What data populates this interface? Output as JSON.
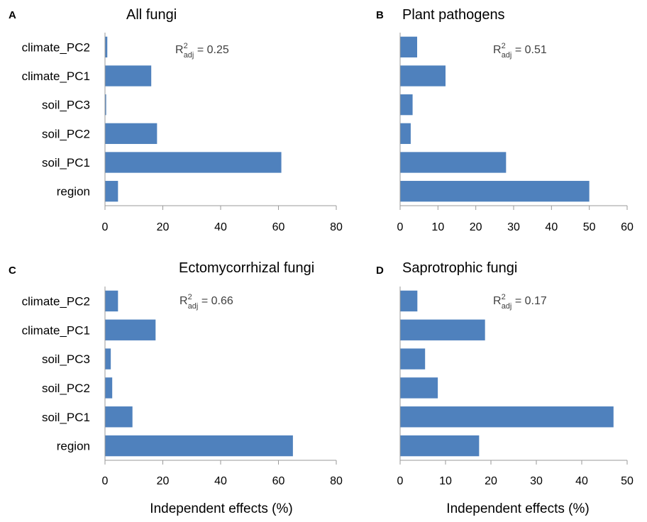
{
  "chart_data": [
    {
      "type": "bar",
      "orientation": "horizontal",
      "panel_letter": "A",
      "title": "All fungi",
      "r2_base": "R",
      "r2_sup": "2",
      "r2_sub": "adj",
      "r2_value": " = 0.25",
      "categories": [
        "climate_PC2",
        "climate_PC1",
        "soil_PC3",
        "soil_PC2",
        "soil_PC1",
        "region"
      ],
      "values": [
        0.8,
        16,
        0.4,
        18,
        61,
        4.5
      ],
      "xlim": [
        0,
        80
      ],
      "ticks": [
        0,
        20,
        40,
        60,
        80
      ],
      "xlabel": ""
    },
    {
      "type": "bar",
      "orientation": "horizontal",
      "panel_letter": "B",
      "title": "Plant pathogens",
      "r2_base": "R",
      "r2_sup": "2",
      "r2_sub": "adj",
      "r2_value": " = 0.51",
      "categories": [
        "climate_PC2",
        "climate_PC1",
        "soil_PC3",
        "soil_PC2",
        "soil_PC1",
        "region"
      ],
      "values": [
        4.5,
        12,
        3.3,
        2.8,
        28,
        50
      ],
      "xlim": [
        0,
        60
      ],
      "ticks": [
        0,
        10,
        20,
        30,
        40,
        50,
        60
      ],
      "xlabel": ""
    },
    {
      "type": "bar",
      "orientation": "horizontal",
      "panel_letter": "C",
      "title": "Ectomycorrhizal fungi",
      "r2_base": "R",
      "r2_sup": "2",
      "r2_sub": "adj",
      "r2_value": " = 0.66",
      "categories": [
        "climate_PC2",
        "climate_PC1",
        "soil_PC3",
        "soil_PC2",
        "soil_PC1",
        "region"
      ],
      "values": [
        4.5,
        17.5,
        2,
        2.5,
        9.5,
        65
      ],
      "xlim": [
        0,
        80
      ],
      "ticks": [
        0,
        20,
        40,
        60,
        80
      ],
      "xlabel": "Independent effects (%)"
    },
    {
      "type": "bar",
      "orientation": "horizontal",
      "panel_letter": "D",
      "title": "Saprotrophic fungi",
      "r2_base": "R",
      "r2_sup": "2",
      "r2_sub": "adj",
      "r2_value": " = 0.17",
      "categories": [
        "climate_PC2",
        "climate_PC1",
        "soil_PC3",
        "soil_PC2",
        "soil_PC1",
        "region"
      ],
      "values": [
        3.8,
        18.7,
        5.5,
        8.3,
        47,
        17.4
      ],
      "xlim": [
        0,
        50
      ],
      "ticks": [
        0,
        10,
        20,
        30,
        40,
        50
      ],
      "xlabel": "Independent effects (%)"
    }
  ],
  "colors": {
    "bar": "#4f81bd",
    "axis": "#9a9a9a",
    "r2_text": "#404040"
  }
}
